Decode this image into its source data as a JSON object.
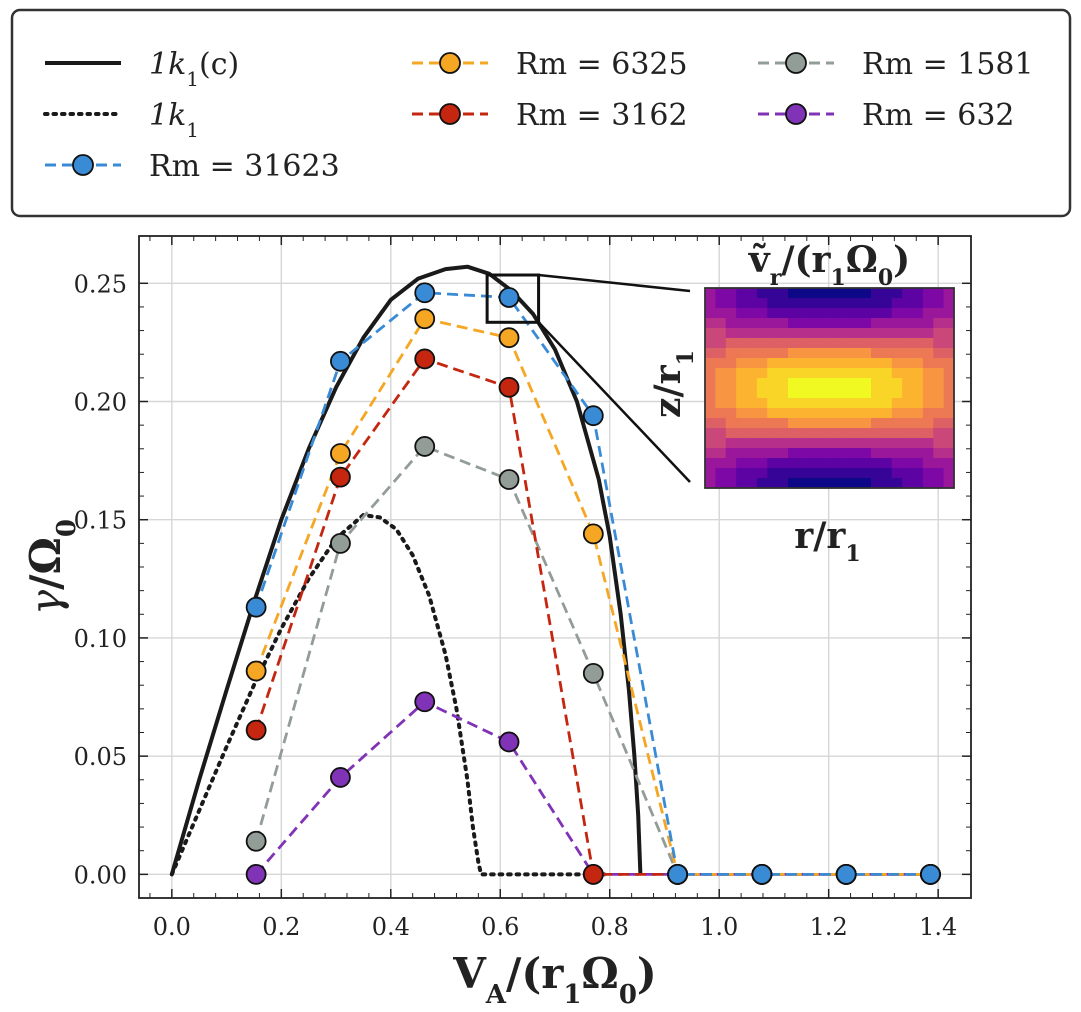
{
  "chart_data": {
    "type": "line",
    "xlabel": "V_A/(r_1Ω_0)",
    "ylabel": "γ/Ω_0",
    "xlim": [
      -0.06,
      1.46
    ],
    "ylim": [
      -0.01,
      0.27
    ],
    "grid": true,
    "legend_position": "top, outside plot, 3 columns",
    "x_ticks": [
      0.0,
      0.2,
      0.4,
      0.6,
      0.8,
      1.0,
      1.2,
      1.4
    ],
    "x_tick_labels": [
      "0.0",
      "0.2",
      "0.4",
      "0.6",
      "0.8",
      "1.0",
      "1.2",
      "1.4"
    ],
    "y_ticks": [
      0.0,
      0.05,
      0.1,
      0.15,
      0.2,
      0.25
    ],
    "y_tick_labels": [
      "0.00",
      "0.05",
      "0.10",
      "0.15",
      "0.20",
      "0.25"
    ],
    "curves": [
      {
        "name": "1k1(c)",
        "label_main": "1k",
        "label_sub": "1",
        "label_suffix": "(c)",
        "style": "solid",
        "color": "#1a1a1a",
        "x": [
          0.0,
          0.05,
          0.1,
          0.15,
          0.2,
          0.25,
          0.3,
          0.35,
          0.4,
          0.45,
          0.5,
          0.54,
          0.58,
          0.62,
          0.66,
          0.7,
          0.74,
          0.78,
          0.8,
          0.82,
          0.835,
          0.845,
          0.852,
          0.856
        ],
        "y": [
          0.0,
          0.04,
          0.078,
          0.115,
          0.15,
          0.18,
          0.206,
          0.227,
          0.243,
          0.252,
          0.256,
          0.257,
          0.254,
          0.247,
          0.237,
          0.222,
          0.2,
          0.167,
          0.143,
          0.11,
          0.078,
          0.05,
          0.025,
          0.0
        ]
      },
      {
        "name": "1k1",
        "label_main": "1k",
        "label_sub": "1",
        "label_suffix": "",
        "style": "dotted",
        "color": "#1a1a1a",
        "x": [
          0.0,
          0.05,
          0.1,
          0.15,
          0.2,
          0.25,
          0.3,
          0.35,
          0.38,
          0.41,
          0.44,
          0.47,
          0.5,
          0.52,
          0.54,
          0.55,
          0.56,
          0.565,
          0.6,
          0.7,
          0.8
        ],
        "y": [
          0.0,
          0.027,
          0.054,
          0.08,
          0.104,
          0.125,
          0.142,
          0.152,
          0.151,
          0.146,
          0.135,
          0.118,
          0.093,
          0.07,
          0.04,
          0.02,
          0.005,
          0.0,
          0.0,
          0.0,
          0.0
        ]
      }
    ],
    "series": [
      {
        "name": "Rm = 31623",
        "color": "#3a8bd6",
        "x": [
          0.154,
          0.308,
          0.462,
          0.616,
          0.77,
          0.924,
          1.078,
          1.232,
          1.386
        ],
        "y": [
          0.113,
          0.217,
          0.246,
          0.244,
          0.194,
          0.0,
          0.0,
          0.0,
          0.0
        ]
      },
      {
        "name": "Rm = 6325",
        "color": "#f5a623",
        "x": [
          0.154,
          0.308,
          0.462,
          0.616,
          0.77,
          0.924,
          1.078,
          1.232,
          1.386
        ],
        "y": [
          0.086,
          0.178,
          0.235,
          0.227,
          0.144,
          0.0,
          0.0,
          0.0,
          0.0
        ]
      },
      {
        "name": "Rm = 3162",
        "color": "#c4260f",
        "x": [
          0.154,
          0.308,
          0.462,
          0.616,
          0.77,
          0.924,
          1.078,
          1.232,
          1.386
        ],
        "y": [
          0.061,
          0.168,
          0.218,
          0.206,
          0.0,
          0.0,
          0.0,
          0.0,
          0.0
        ]
      },
      {
        "name": "Rm = 1581",
        "color": "#939d98",
        "x": [
          0.154,
          0.308,
          0.462,
          0.616,
          0.77,
          0.924,
          1.078,
          1.232,
          1.386
        ],
        "y": [
          0.014,
          0.14,
          0.181,
          0.167,
          0.085,
          0.0,
          0.0,
          0.0,
          0.0
        ]
      },
      {
        "name": "Rm = 632",
        "color": "#8033b6",
        "x": [
          0.154,
          0.308,
          0.462,
          0.616,
          0.77,
          0.924,
          1.078,
          1.232,
          1.386
        ],
        "y": [
          0.0,
          0.041,
          0.073,
          0.056,
          0.0,
          0.0,
          0.0,
          0.0,
          0.0
        ]
      }
    ],
    "zoom_box": {
      "x": [
        0.576,
        0.67
      ],
      "y": [
        0.2335,
        0.2535
      ]
    },
    "inset": {
      "title": "ṽ_r/(r_1Ω_0)",
      "xlabel": "r/r_1",
      "ylabel": "z/r_1",
      "colormap": "plasma",
      "rows": 20,
      "cols": 24
    }
  }
}
